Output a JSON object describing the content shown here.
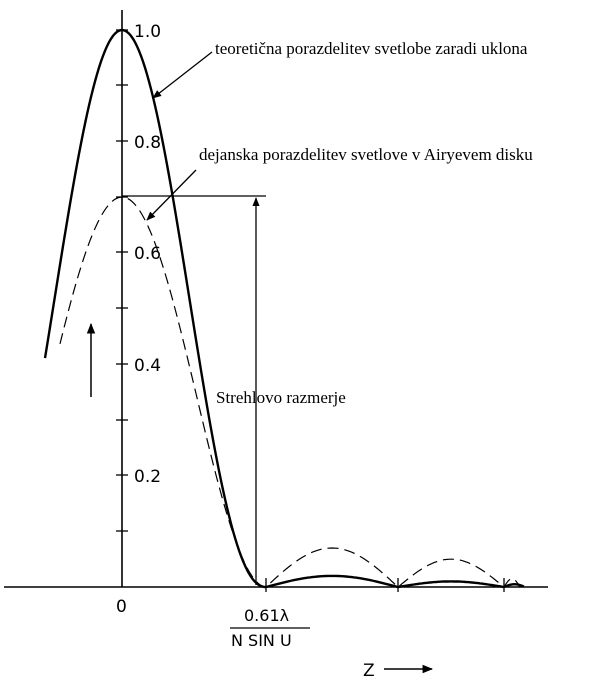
{
  "chart_data": {
    "type": "line",
    "x_axis": {
      "origin_label": "0",
      "marker_numerator": "0.61λ",
      "marker_denominator": "N SIN U",
      "variable_label": "Z"
    },
    "y_axis": {
      "tick_labels": [
        "1.0",
        "0.8",
        "0.6",
        "0.4",
        "0.2"
      ],
      "tick_values": [
        1.0,
        0.8,
        0.6,
        0.4,
        0.2
      ],
      "ylim": [
        0,
        1.0
      ]
    },
    "series": [
      {
        "name": "teoretična porazdelitev svetlobe zaradi uklona",
        "style": "solid",
        "color": "#000000",
        "central_peak": 1.0,
        "first_zero_z": 0.61,
        "secondary_peaks": [
          0.02,
          0.01
        ]
      },
      {
        "name": "dejanska porazdelitev svetlove v Airyevem disku",
        "style": "dashed",
        "color": "#000000",
        "central_peak": 0.7,
        "first_zero_z": 0.61,
        "secondary_peaks": [
          0.07,
          0.05
        ]
      }
    ],
    "annotations": {
      "strehl": "Strehlovo razmerje"
    }
  }
}
